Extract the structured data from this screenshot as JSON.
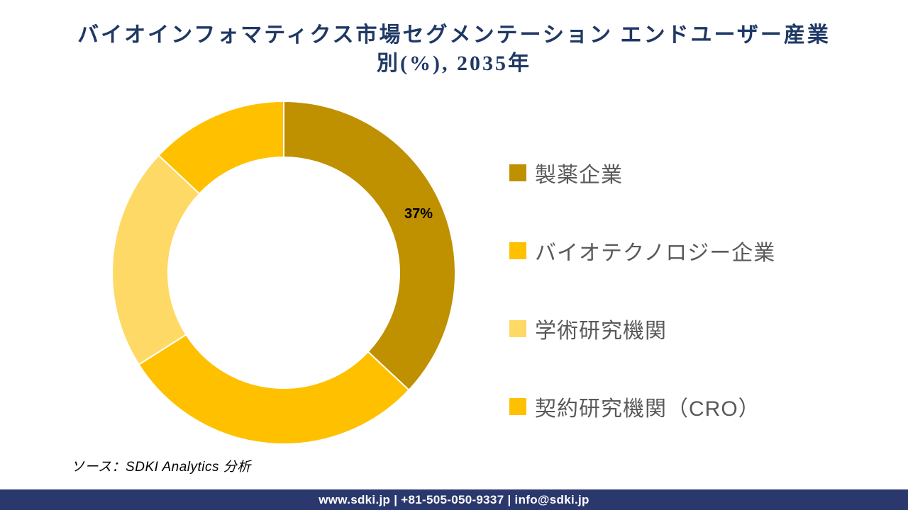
{
  "title": "バイオインフォマティクス市場セグメンテーション エンドユーザー産業別(%), 2035年",
  "title_lines": [
    "バイオインフォマティクス市場セグメンテーション エンドユーザー産業",
    "別(%), 2035年"
  ],
  "chart_data": {
    "type": "pie",
    "subtype": "donut",
    "title": "バイオインフォマティクス市場セグメンテーション エンドユーザー産業別(%), 2035年",
    "unit": "%",
    "start_angle_deg": 0,
    "direction": "clockwise",
    "legend_position": "right",
    "data_label_color": "#000000",
    "separator_color": "#FFFFFF",
    "segments": [
      {
        "label": "製薬企業",
        "value": 37,
        "color": "#BF9000",
        "data_label": "37%",
        "show_label": true
      },
      {
        "label": "バイオテクノロジー企業",
        "value": 29,
        "color": "#FFC000",
        "data_label": "",
        "show_label": false
      },
      {
        "label": "学術研究機関",
        "value": 21,
        "color": "#FFD966",
        "data_label": "",
        "show_label": false
      },
      {
        "label": "契約研究機関（CRO）",
        "value": 13,
        "color": "#FFC000",
        "data_label": "",
        "show_label": false
      }
    ]
  },
  "source_note": "ソース：SDKI Analytics 分析",
  "footer": {
    "text": "www.sdki.jp | +81-505-050-9337 | info@sdki.jp",
    "background_color": "#2B386E"
  },
  "colors": {
    "title_text": "#1F3864",
    "legend_text": "#595959",
    "background": "#FFFFFF"
  }
}
